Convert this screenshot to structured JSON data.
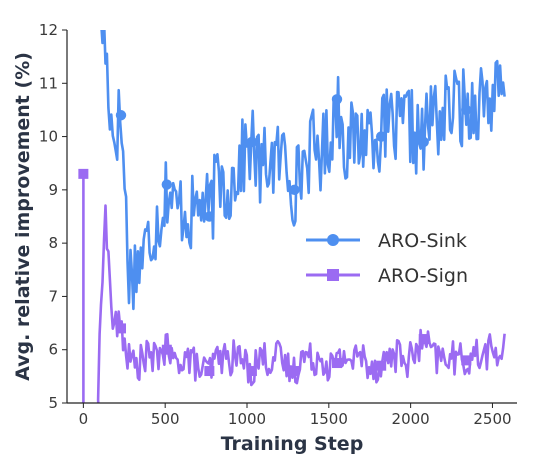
{
  "chart_data": {
    "type": "line",
    "title": "",
    "xlabel": "Training Step",
    "ylabel": "Avg. relative improvement (%)",
    "xlim": [
      -100,
      2650
    ],
    "ylim": [
      5,
      12
    ],
    "xticks": [
      0,
      500,
      1000,
      1500,
      2000,
      2500
    ],
    "xtick_labels": [
      "0",
      "500",
      "1000",
      "1500",
      "2000",
      "2500"
    ],
    "yticks": [
      5,
      6,
      7,
      8,
      9,
      10,
      11,
      12
    ],
    "ytick_labels": [
      "5",
      "6",
      "7",
      "8",
      "9",
      "10",
      "11",
      "12"
    ],
    "grid": false,
    "legend_position": "center-right",
    "series": [
      {
        "name": "ARO-Sink",
        "color": "#4e8ff0",
        "marker": "circle",
        "markers_at": [
          230,
          510,
          770,
          1030,
          1290,
          1550,
          1820,
          2080,
          2340
        ],
        "x": [
          0,
          90,
          130,
          180,
          230,
          280,
          330,
          380,
          430,
          480,
          510,
          560,
          610,
          660,
          720,
          770,
          830,
          880,
          940,
          1030,
          1080,
          1130,
          1180,
          1230,
          1290,
          1340,
          1400,
          1450,
          1500,
          1550,
          1600,
          1650,
          1700,
          1760,
          1820,
          1870,
          1930,
          1980,
          2030,
          2080,
          2130,
          2180,
          2230,
          2290,
          2340,
          2390,
          2440,
          2490,
          2540,
          2580
        ],
        "y": [
          null,
          12.6,
          11.8,
          10.0,
          10.4,
          7.4,
          7.6,
          7.9,
          8.3,
          8.6,
          9.1,
          8.6,
          8.7,
          8.5,
          8.8,
          8.5,
          9.3,
          9.0,
          9.4,
          9.9,
          9.3,
          9.6,
          9.5,
          9.7,
          9.0,
          9.5,
          9.8,
          9.7,
          9.9,
          10.7,
          9.9,
          9.9,
          10.0,
          10.2,
          10.0,
          10.2,
          10.1,
          10.3,
          10.0,
          9.9,
          10.5,
          10.3,
          10.5,
          10.6,
          10.5,
          10.6,
          10.8,
          10.7,
          10.8,
          10.6
        ]
      },
      {
        "name": "ARO-Sign",
        "color": "#9b6bf2",
        "marker": "square",
        "markers_at": [
          0,
          230,
          510,
          770,
          1030,
          1290,
          1550,
          1820,
          2080,
          2340
        ],
        "x": [
          0,
          90,
          130,
          180,
          230,
          280,
          330,
          380,
          430,
          480,
          510,
          560,
          610,
          660,
          720,
          770,
          830,
          880,
          940,
          1030,
          1080,
          1130,
          1180,
          1230,
          1290,
          1340,
          1400,
          1450,
          1500,
          1550,
          1600,
          1650,
          1700,
          1760,
          1820,
          1870,
          1930,
          1980,
          2030,
          2080,
          2130,
          2180,
          2230,
          2290,
          2340,
          2390,
          2440,
          2490,
          2540,
          2580
        ],
        "y": [
          9.3,
          5.2,
          8.7,
          6.5,
          6.4,
          5.8,
          5.7,
          5.9,
          5.8,
          6.0,
          6.0,
          5.7,
          5.9,
          5.8,
          5.6,
          5.6,
          5.9,
          5.8,
          5.9,
          5.6,
          5.9,
          5.8,
          5.9,
          5.7,
          5.6,
          5.9,
          5.8,
          5.9,
          5.7,
          5.75,
          5.9,
          5.8,
          5.9,
          5.7,
          5.7,
          5.9,
          5.9,
          5.8,
          5.9,
          6.2,
          5.9,
          5.8,
          5.9,
          5.8,
          5.8,
          5.9,
          5.9,
          6.0,
          5.9,
          6.0
        ]
      }
    ]
  }
}
